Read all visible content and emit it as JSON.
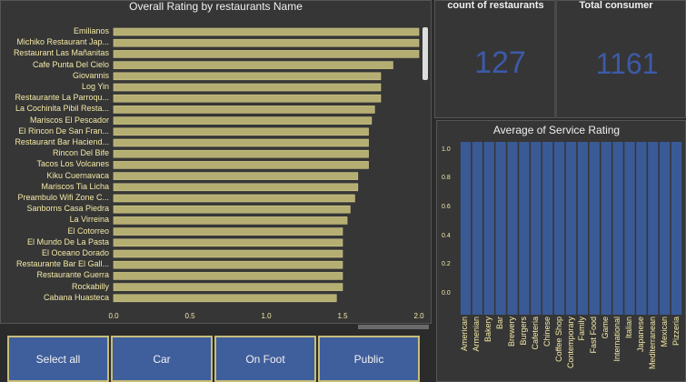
{
  "left_chart": {
    "title": "Overall Rating by restaurants Name",
    "chart_data": {
      "type": "bar",
      "orientation": "horizontal",
      "title": "Overall Rating by restaurants Name",
      "categories": [
        "Emilianos",
        "Michiko Restaurant Jap...",
        "Restaurant Las Mañanitas",
        "Cafe Punta Del Cielo",
        "Giovannis",
        "Log Yin",
        "Restaurante La Parroqu...",
        "La Cochinita Pibil Resta...",
        "Mariscos El Pescador",
        "El Rincon De San Fran...",
        "Restaurant Bar Haciend...",
        "Rincon Del Bife",
        "Tacos Los Volcanes",
        "Kiku Cuernavaca",
        "Mariscos Tia Licha",
        "Preambulo Wifi Zone C...",
        "Sanborns Casa Piedra",
        "La Virreina",
        "El Cotorreo",
        "El Mundo De La Pasta",
        "El Oceano Dorado",
        "Restaurante Bar El Gall...",
        "Restaurante Guerra",
        "Rockabilly",
        "Cabana Huasteca"
      ],
      "values": [
        2.0,
        2.0,
        2.0,
        1.83,
        1.75,
        1.75,
        1.75,
        1.71,
        1.69,
        1.67,
        1.67,
        1.67,
        1.67,
        1.6,
        1.6,
        1.58,
        1.55,
        1.53,
        1.5,
        1.5,
        1.5,
        1.5,
        1.5,
        1.5,
        1.46
      ],
      "xlim": [
        0,
        2.0
      ],
      "xticks": [
        "0.0",
        "0.5",
        "1.0",
        "1.5",
        "2.0"
      ]
    }
  },
  "kpi": {
    "count_title": "count of restaurants",
    "count_value": "127",
    "consumer_title": "Total consumer",
    "consumer_value": "1161"
  },
  "service_chart": {
    "title": "Average of Service Rating",
    "chart_data": {
      "type": "bar",
      "title": "Average of Service Rating",
      "categories": [
        "American",
        "Armenian",
        "Bakery",
        "Bar",
        "Brewery",
        "Burgers",
        "Cafeteria",
        "Chinese",
        "Coffee Shop",
        "Contemporary",
        "Family",
        "Fast Food",
        "Game",
        "International",
        "Italian",
        "Japanese",
        "Mediterranean",
        "Mexican",
        "Pizzeria"
      ],
      "values": [
        1.2,
        1.2,
        1.2,
        1.2,
        1.2,
        1.2,
        1.2,
        1.2,
        1.2,
        1.2,
        1.2,
        1.2,
        1.2,
        1.2,
        1.2,
        1.2,
        1.2,
        1.2,
        1.2
      ],
      "ylim": [
        0,
        1.2
      ],
      "yticks": [
        "0.0",
        "0.2",
        "0.4",
        "0.6",
        "0.8",
        "1.0"
      ]
    }
  },
  "buttons": [
    "Select all",
    "Car",
    "On Foot",
    "Public"
  ],
  "colors": {
    "bar": "#b5ae72",
    "column": "#3a5a96",
    "button": "#3f5e9c",
    "kpi": "#3d5aa8",
    "label": "#f4e9a6"
  }
}
